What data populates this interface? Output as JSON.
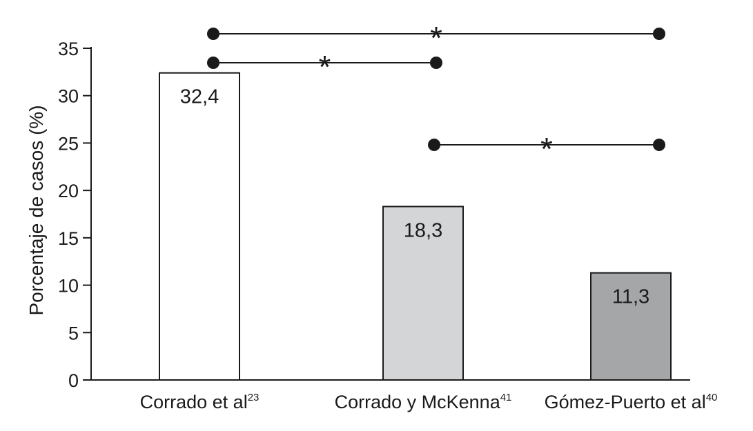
{
  "chart_data": {
    "type": "bar",
    "title": "",
    "xlabel": "",
    "ylabel": "Porcentaje de casos (%)",
    "ylim": [
      0,
      35
    ],
    "yticks": [
      0,
      5,
      10,
      15,
      20,
      25,
      30,
      35
    ],
    "grid": false,
    "categories": [
      {
        "name": "Corrado et al",
        "ref": "23",
        "value": 32.4,
        "value_label": "32,4",
        "color": "#ffffff"
      },
      {
        "name": "Corrado y McKenna",
        "ref": "41",
        "value": 18.3,
        "value_label": "18,3",
        "color": "#d4d5d7"
      },
      {
        "name": "Gómez-Puerto et al",
        "ref": "40",
        "value": 11.3,
        "value_label": "11,3",
        "color": "#a5a6a8"
      }
    ],
    "significance": [
      {
        "from": 0,
        "to": 2,
        "label": "*"
      },
      {
        "from": 0,
        "to": 1,
        "label": "*"
      },
      {
        "from": 1,
        "to": 2,
        "label": "*"
      }
    ]
  }
}
